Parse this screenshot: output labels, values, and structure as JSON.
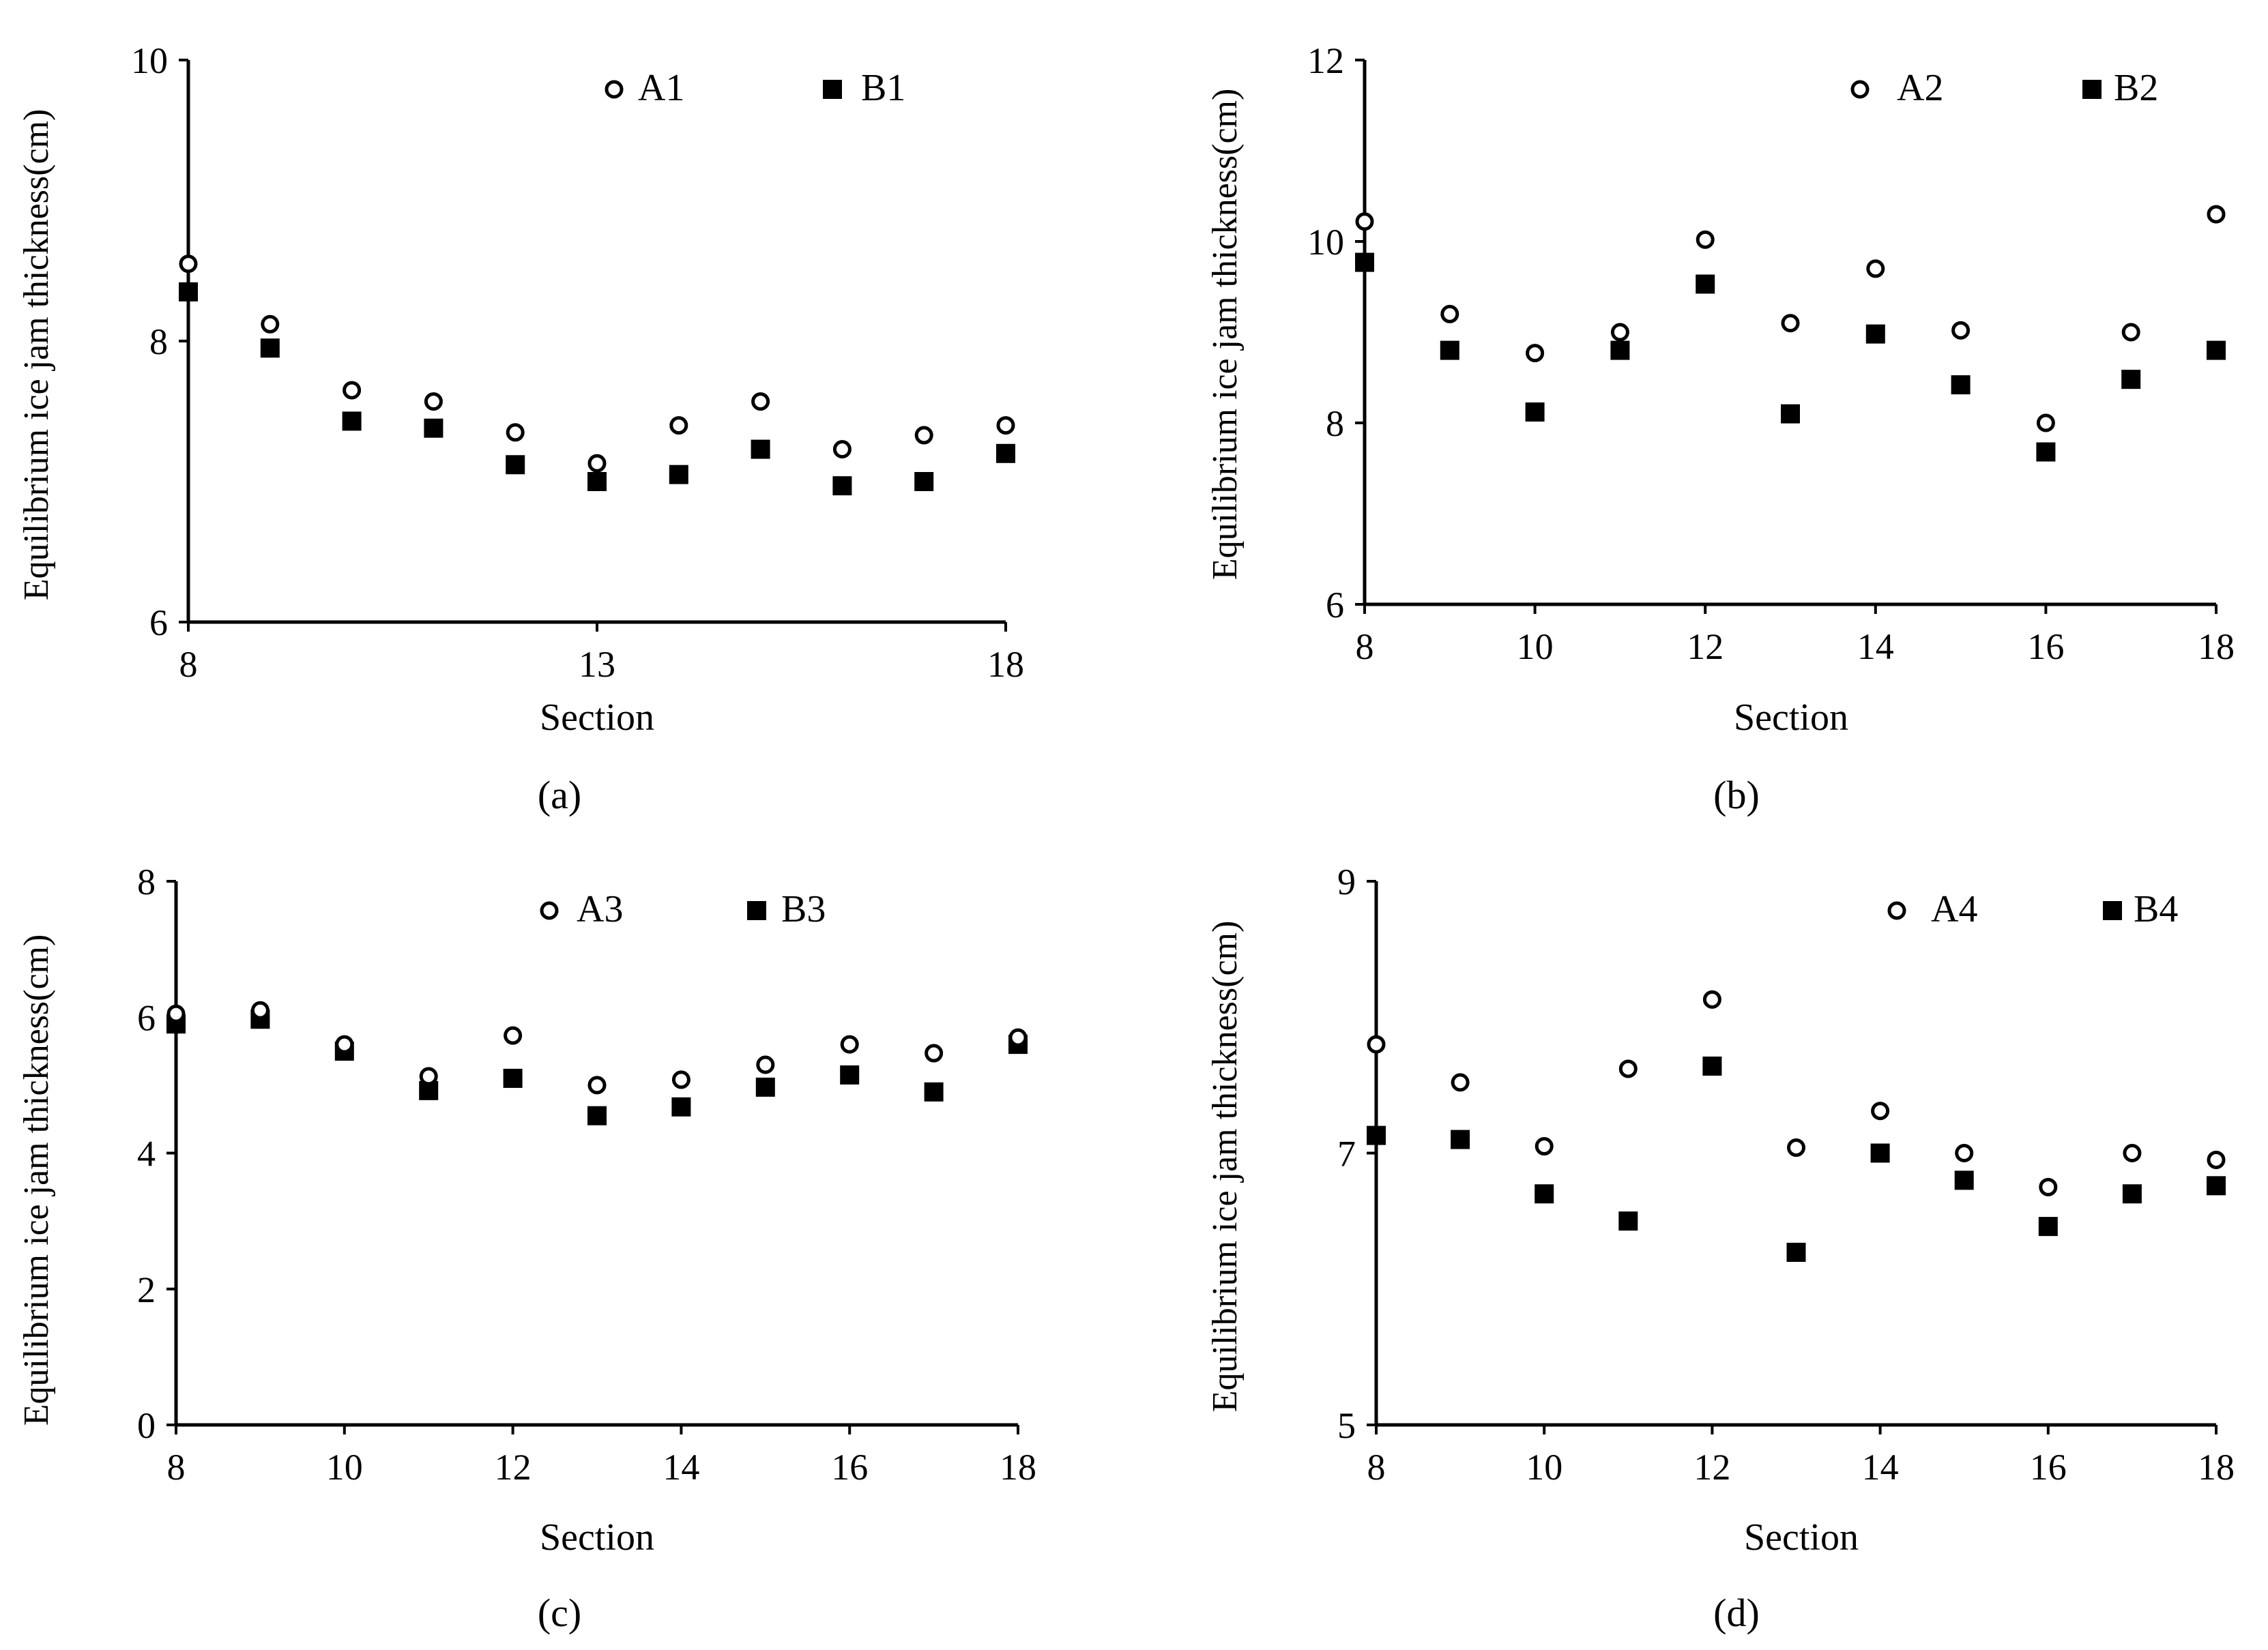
{
  "colors": {
    "axis": "#000000",
    "series_a_stroke": "#000000",
    "series_a_fill": "#ffffff",
    "series_b_fill": "#000000"
  },
  "chart_data": [
    {
      "type": "scatter",
      "panel_label": "(a)",
      "title": "",
      "xlabel": "Section",
      "ylabel": "Equilibrium ice jam thickness(cm)",
      "xlim": [
        8,
        18
      ],
      "ylim": [
        6,
        10
      ],
      "xticks": [
        8,
        13,
        18
      ],
      "yticks": [
        6,
        8,
        10
      ],
      "grid": false,
      "legend": "top-right",
      "x": [
        8,
        9,
        10,
        11,
        12,
        13,
        14,
        15,
        16,
        17,
        18
      ],
      "series": [
        {
          "name": "A1",
          "marker": "open-circle",
          "values": [
            8.55,
            8.12,
            7.65,
            7.57,
            7.35,
            7.13,
            7.4,
            7.57,
            7.23,
            7.33,
            7.4
          ]
        },
        {
          "name": "B1",
          "marker": "filled-square",
          "values": [
            8.35,
            7.95,
            7.43,
            7.38,
            7.12,
            7.0,
            7.05,
            7.23,
            6.97,
            7.0,
            7.2
          ]
        }
      ]
    },
    {
      "type": "scatter",
      "panel_label": "(b)",
      "title": "",
      "xlabel": "Section",
      "ylabel": "Equilibrium ice jam thickness(cm)",
      "xlim": [
        8,
        18
      ],
      "ylim": [
        6,
        12
      ],
      "xticks": [
        8,
        10,
        12,
        14,
        16,
        18
      ],
      "yticks": [
        6,
        8,
        10,
        12
      ],
      "grid": false,
      "legend": "top-right",
      "x": [
        8,
        9,
        10,
        11,
        12,
        13,
        14,
        15,
        16,
        17,
        18
      ],
      "series": [
        {
          "name": "A2",
          "marker": "open-circle",
          "values": [
            10.22,
            9.2,
            8.77,
            9.0,
            10.02,
            9.1,
            9.7,
            9.02,
            8.0,
            9.0,
            10.3
          ]
        },
        {
          "name": "B2",
          "marker": "filled-square",
          "values": [
            9.77,
            8.8,
            8.12,
            8.8,
            9.53,
            8.1,
            8.98,
            8.42,
            7.68,
            8.48,
            8.8
          ]
        }
      ]
    },
    {
      "type": "scatter",
      "panel_label": "(c)",
      "title": "",
      "xlabel": "Section",
      "ylabel": "Equilibrium ice jam thickness(cm)",
      "xlim": [
        8,
        18
      ],
      "ylim": [
        0,
        8
      ],
      "xticks": [
        8,
        10,
        12,
        14,
        16,
        18
      ],
      "yticks": [
        0,
        2,
        4,
        6,
        8
      ],
      "grid": false,
      "legend": "top-right",
      "x": [
        8,
        9,
        10,
        11,
        12,
        13,
        14,
        15,
        16,
        17,
        18
      ],
      "series": [
        {
          "name": "A3",
          "marker": "open-circle",
          "values": [
            6.05,
            6.1,
            5.6,
            5.13,
            5.73,
            5.0,
            5.08,
            5.3,
            5.6,
            5.47,
            5.7
          ]
        },
        {
          "name": "B3",
          "marker": "filled-square",
          "values": [
            5.9,
            5.97,
            5.5,
            4.92,
            5.1,
            4.55,
            4.68,
            4.97,
            5.15,
            4.9,
            5.6
          ]
        }
      ]
    },
    {
      "type": "scatter",
      "panel_label": "(d)",
      "title": "",
      "xlabel": "Section",
      "ylabel": "Equilibrium ice jam thickness(cm)",
      "xlim": [
        8,
        18
      ],
      "ylim": [
        5,
        9
      ],
      "xticks": [
        8,
        10,
        12,
        14,
        16,
        18
      ],
      "yticks": [
        5,
        7,
        9
      ],
      "grid": false,
      "legend": "top-right",
      "x": [
        8,
        9,
        10,
        11,
        12,
        13,
        14,
        15,
        16,
        17,
        18
      ],
      "series": [
        {
          "name": "A4",
          "marker": "open-circle",
          "values": [
            7.8,
            7.52,
            7.05,
            7.62,
            8.13,
            7.04,
            7.31,
            7.0,
            6.75,
            7.0,
            6.95
          ]
        },
        {
          "name": "B4",
          "marker": "filled-square",
          "values": [
            7.13,
            7.1,
            6.7,
            6.5,
            7.64,
            6.27,
            7.0,
            6.8,
            6.46,
            6.7,
            6.76
          ]
        }
      ]
    }
  ]
}
